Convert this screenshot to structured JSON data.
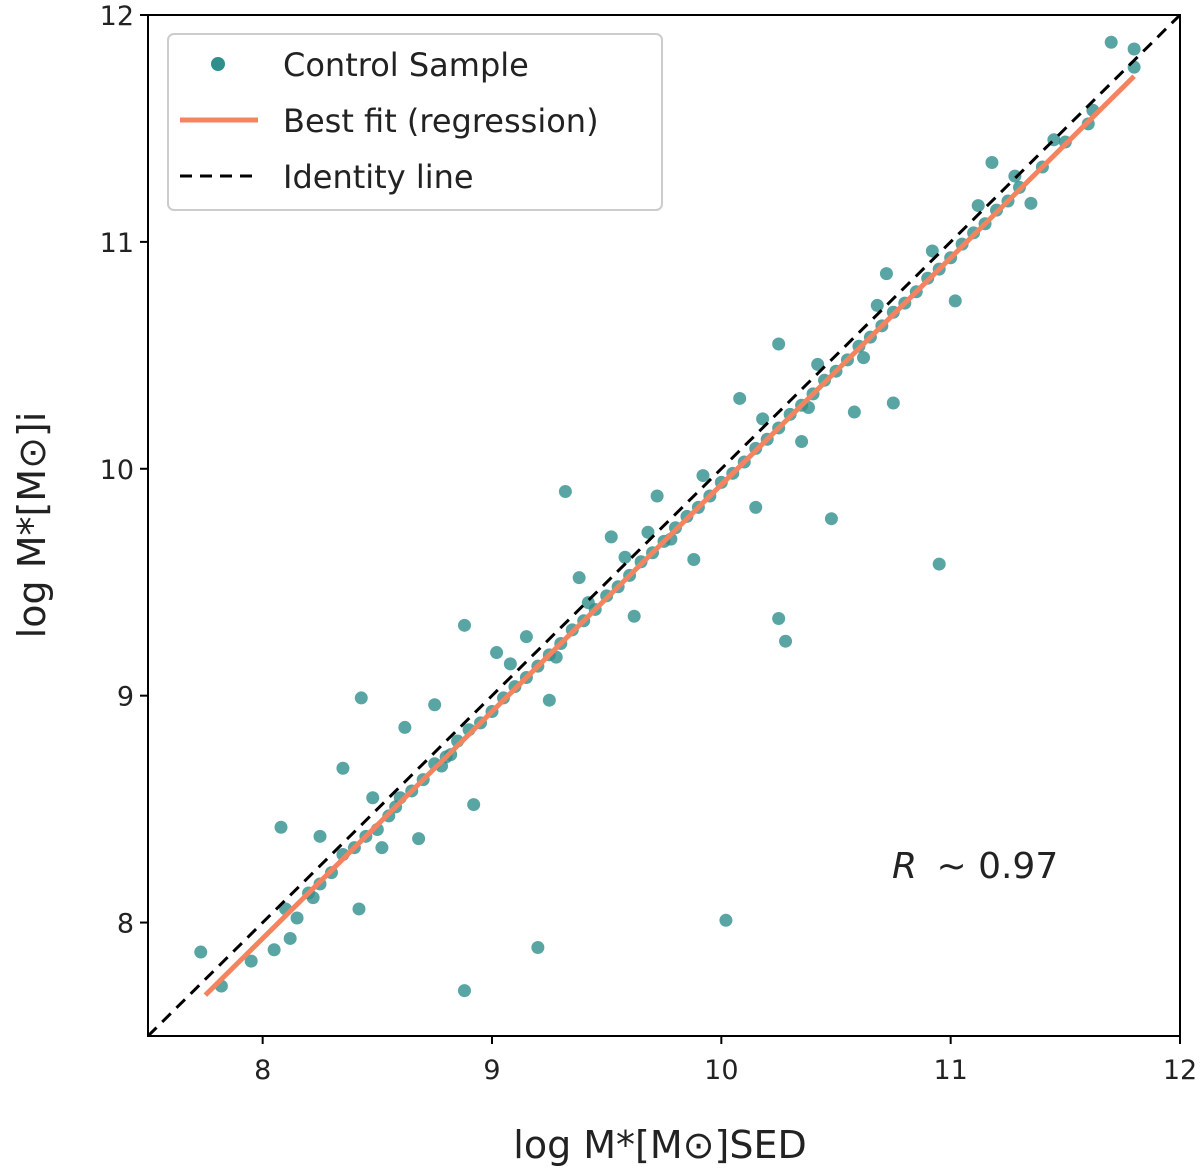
{
  "chart_data": {
    "type": "scatter",
    "xlabel": "log M*[M⊙]SED",
    "ylabel": "log M*[M⊙]i",
    "xlim": [
      7.5,
      12
    ],
    "ylim": [
      7.5,
      12
    ],
    "x_ticks": [
      8,
      9,
      10,
      11,
      12
    ],
    "y_ticks": [
      8,
      9,
      10,
      11,
      12
    ],
    "x_tick_labels": [
      "8",
      "9",
      "10",
      "11",
      "12"
    ],
    "y_tick_labels": [
      "8",
      "9",
      "10",
      "11",
      "12"
    ],
    "legend_position": "top-left",
    "colors": {
      "scatter": "#2f8f8c",
      "fit": "#f4845f",
      "identity": "#000000"
    },
    "series": [
      {
        "name": "Control Sample",
        "kind": "scatter",
        "points": [
          [
            7.73,
            7.87
          ],
          [
            7.82,
            7.72
          ],
          [
            7.95,
            7.83
          ],
          [
            8.05,
            7.88
          ],
          [
            8.1,
            8.06
          ],
          [
            8.15,
            8.02
          ],
          [
            8.2,
            8.13
          ],
          [
            8.25,
            8.17
          ],
          [
            8.3,
            8.22
          ],
          [
            8.35,
            8.3
          ],
          [
            8.4,
            8.33
          ],
          [
            8.45,
            8.38
          ],
          [
            8.5,
            8.41
          ],
          [
            8.55,
            8.47
          ],
          [
            8.6,
            8.55
          ],
          [
            8.65,
            8.58
          ],
          [
            8.7,
            8.63
          ],
          [
            8.75,
            8.7
          ],
          [
            8.8,
            8.73
          ],
          [
            8.85,
            8.8
          ],
          [
            8.9,
            8.85
          ],
          [
            8.95,
            8.88
          ],
          [
            9.0,
            8.93
          ],
          [
            9.05,
            8.99
          ],
          [
            9.1,
            9.04
          ],
          [
            9.15,
            9.08
          ],
          [
            9.2,
            9.13
          ],
          [
            9.25,
            9.18
          ],
          [
            9.3,
            9.23
          ],
          [
            9.35,
            9.29
          ],
          [
            9.4,
            9.33
          ],
          [
            9.45,
            9.38
          ],
          [
            9.5,
            9.44
          ],
          [
            9.55,
            9.48
          ],
          [
            9.6,
            9.53
          ],
          [
            9.65,
            9.59
          ],
          [
            9.7,
            9.63
          ],
          [
            9.75,
            9.68
          ],
          [
            9.8,
            9.74
          ],
          [
            9.85,
            9.79
          ],
          [
            9.9,
            9.83
          ],
          [
            9.95,
            9.88
          ],
          [
            10.0,
            9.94
          ],
          [
            10.05,
            9.98
          ],
          [
            10.1,
            10.03
          ],
          [
            10.15,
            10.09
          ],
          [
            10.2,
            10.13
          ],
          [
            10.25,
            10.18
          ],
          [
            10.3,
            10.24
          ],
          [
            10.35,
            10.28
          ],
          [
            10.4,
            10.33
          ],
          [
            10.45,
            10.39
          ],
          [
            10.5,
            10.43
          ],
          [
            10.55,
            10.48
          ],
          [
            10.6,
            10.54
          ],
          [
            10.65,
            10.58
          ],
          [
            10.7,
            10.63
          ],
          [
            10.75,
            10.69
          ],
          [
            10.8,
            10.73
          ],
          [
            10.85,
            10.78
          ],
          [
            10.9,
            10.84
          ],
          [
            10.95,
            10.88
          ],
          [
            11.0,
            10.93
          ],
          [
            11.05,
            10.99
          ],
          [
            11.1,
            11.04
          ],
          [
            11.15,
            11.08
          ],
          [
            11.2,
            11.14
          ],
          [
            11.25,
            11.18
          ],
          [
            11.3,
            11.24
          ],
          [
            11.4,
            11.33
          ],
          [
            11.5,
            11.44
          ],
          [
            11.6,
            11.52
          ],
          [
            11.7,
            11.88
          ],
          [
            11.8,
            11.85
          ],
          [
            11.8,
            11.77
          ],
          [
            8.08,
            8.42
          ],
          [
            8.12,
            7.93
          ],
          [
            8.25,
            8.38
          ],
          [
            8.35,
            8.68
          ],
          [
            8.43,
            8.99
          ],
          [
            8.42,
            8.06
          ],
          [
            8.52,
            8.33
          ],
          [
            8.62,
            8.86
          ],
          [
            8.68,
            8.37
          ],
          [
            8.75,
            8.96
          ],
          [
            8.88,
            9.31
          ],
          [
            8.88,
            7.7
          ],
          [
            8.92,
            8.52
          ],
          [
            9.02,
            9.19
          ],
          [
            9.15,
            9.26
          ],
          [
            9.2,
            7.89
          ],
          [
            9.25,
            8.98
          ],
          [
            9.32,
            9.9
          ],
          [
            9.38,
            9.52
          ],
          [
            9.52,
            9.7
          ],
          [
            9.62,
            9.35
          ],
          [
            9.72,
            9.88
          ],
          [
            9.88,
            9.6
          ],
          [
            10.02,
            8.01
          ],
          [
            10.08,
            10.31
          ],
          [
            10.15,
            9.83
          ],
          [
            10.25,
            10.55
          ],
          [
            10.25,
            9.34
          ],
          [
            10.28,
            9.24
          ],
          [
            10.35,
            10.12
          ],
          [
            10.48,
            9.78
          ],
          [
            10.58,
            10.25
          ],
          [
            10.72,
            10.86
          ],
          [
            10.75,
            10.29
          ],
          [
            10.95,
            9.58
          ],
          [
            11.02,
            10.74
          ],
          [
            11.18,
            11.35
          ],
          [
            11.35,
            11.17
          ],
          [
            11.45,
            11.45
          ],
          [
            11.62,
            11.58
          ],
          [
            8.22,
            8.11
          ],
          [
            8.48,
            8.55
          ],
          [
            8.58,
            8.51
          ],
          [
            8.82,
            8.74
          ],
          [
            9.08,
            9.14
          ],
          [
            9.42,
            9.41
          ],
          [
            9.68,
            9.72
          ],
          [
            9.92,
            9.97
          ],
          [
            10.18,
            10.22
          ],
          [
            10.42,
            10.46
          ],
          [
            10.68,
            10.72
          ],
          [
            10.92,
            10.96
          ],
          [
            11.12,
            11.16
          ],
          [
            11.28,
            11.29
          ],
          [
            9.58,
            9.61
          ],
          [
            10.62,
            10.49
          ],
          [
            10.38,
            10.27
          ],
          [
            9.78,
            9.69
          ],
          [
            9.28,
            9.17
          ],
          [
            8.78,
            8.69
          ]
        ]
      },
      {
        "name": "Best fit (regression)",
        "kind": "line",
        "x": [
          7.75,
          11.8
        ],
        "y": [
          7.68,
          11.73
        ]
      },
      {
        "name": "Identity line",
        "kind": "line-dashed",
        "x": [
          7.5,
          12
        ],
        "y": [
          7.5,
          12
        ]
      }
    ],
    "annotation": {
      "prefix": "R",
      "value": "~ 0.97"
    }
  }
}
